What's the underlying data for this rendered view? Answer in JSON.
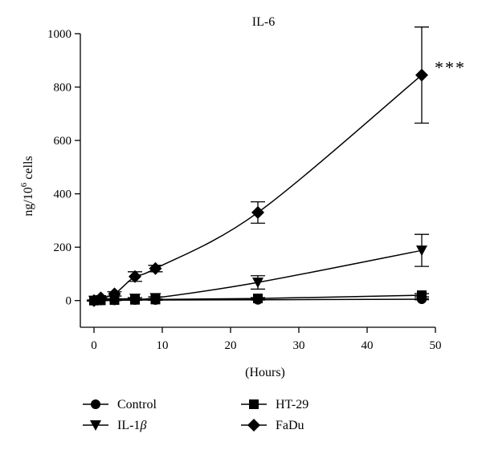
{
  "chart_data": {
    "type": "line",
    "title": "IL-6",
    "xlabel": "(Hours)",
    "ylabel": {
      "prefix": "ng/10",
      "superscript": "6",
      "suffix": " cells"
    },
    "xlim": [
      -2,
      50
    ],
    "ylim": [
      -100,
      1000
    ],
    "xticks": [
      0,
      10,
      20,
      30,
      40,
      50
    ],
    "yticks": [
      0,
      200,
      400,
      600,
      800,
      1000
    ],
    "grid": false,
    "legend_position": "bottom",
    "annotation": {
      "text": "***",
      "x": 48,
      "y": 845
    },
    "series": [
      {
        "name": "Control",
        "marker": "circle",
        "x": [
          0,
          1,
          3,
          6,
          9,
          24,
          48
        ],
        "y": [
          0,
          1,
          1,
          2,
          2,
          3,
          5
        ],
        "err": [
          1,
          1,
          1,
          1,
          1,
          1,
          2
        ]
      },
      {
        "name": "HT-29",
        "marker": "square",
        "x": [
          0,
          1,
          3,
          6,
          9,
          24,
          48
        ],
        "y": [
          0,
          1,
          2,
          3,
          4,
          8,
          20
        ],
        "err": [
          1,
          1,
          1,
          2,
          2,
          3,
          6
        ]
      },
      {
        "name": {
          "prefix": "IL-1",
          "greek": "β"
        },
        "marker": "triangle-down",
        "x": [
          0,
          1,
          3,
          6,
          9,
          24,
          48
        ],
        "y": [
          0,
          2,
          5,
          8,
          10,
          68,
          188
        ],
        "err": [
          1,
          1,
          2,
          3,
          4,
          25,
          60
        ]
      },
      {
        "name": "FaDu",
        "marker": "diamond",
        "x": [
          0,
          1,
          3,
          6,
          9,
          24,
          48
        ],
        "y": [
          0,
          10,
          25,
          90,
          120,
          330,
          845
        ],
        "err": [
          2,
          4,
          8,
          18,
          12,
          40,
          180
        ]
      }
    ]
  }
}
